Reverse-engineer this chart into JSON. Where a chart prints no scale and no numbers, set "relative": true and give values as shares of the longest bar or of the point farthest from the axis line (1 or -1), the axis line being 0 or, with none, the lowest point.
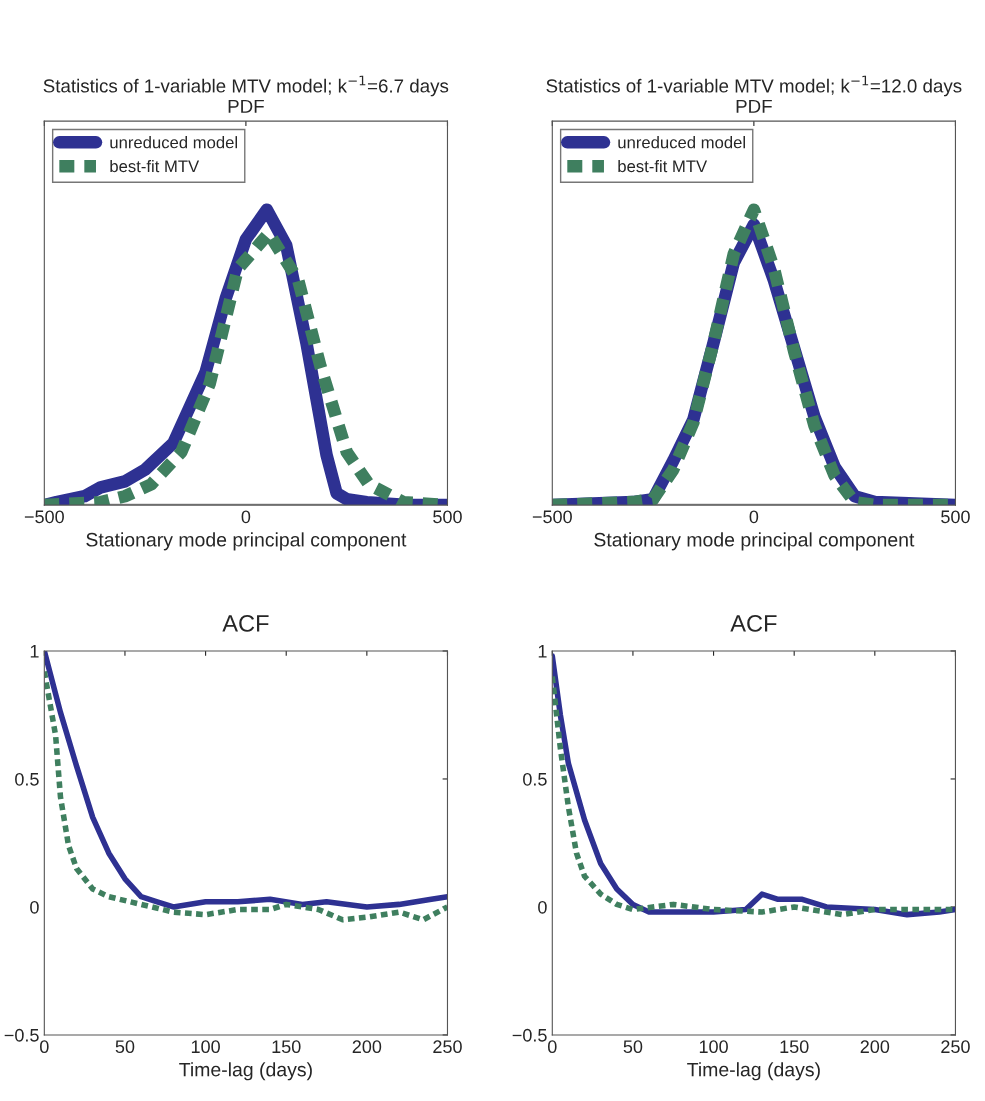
{
  "chart_data": [
    {
      "type": "line",
      "title": "Statistics of 1-variable MTV model; k$^{−1}$=6.7 days",
      "subtitle": "PDF",
      "xlabel": "Stationary mode principal component",
      "relative": true,
      "xlim": [
        -500,
        500
      ],
      "xticks": [
        {
          "value": -500,
          "label": "−500"
        },
        0,
        500
      ],
      "legend": "top left",
      "grid": false,
      "series": [
        {
          "name": "unreduced model",
          "color": "#2e3192",
          "line_style": "solid",
          "x": [
            -500,
            -470,
            -400,
            -360,
            -300,
            -250,
            -180,
            -100,
            -50,
            0,
            52,
            100,
            150,
            200,
            225,
            250,
            300,
            400,
            500
          ],
          "values": [
            0,
            0.01,
            0.03,
            0.06,
            0.08,
            0.12,
            0.21,
            0.45,
            0.7,
            0.9,
            1,
            0.88,
            0.55,
            0.17,
            0.04,
            0.02,
            0.01,
            0,
            0
          ]
        },
        {
          "name": "best-fit MTV",
          "color": "#3f7f5f",
          "line_style": "dashed",
          "x": [
            -500,
            -360,
            -300,
            -235,
            -160,
            -90,
            -20,
            57,
            130,
            185,
            250,
            305,
            390,
            500
          ],
          "values": [
            0,
            0.01,
            0.03,
            0.07,
            0.18,
            0.41,
            0.8,
            0.92,
            0.76,
            0.47,
            0.18,
            0.07,
            0.01,
            0
          ]
        }
      ]
    },
    {
      "type": "line",
      "title": "Statistics of 1-variable MTV model; k$^{−1}$=12.0 days",
      "subtitle": "PDF",
      "xlabel": "Stationary mode principal component",
      "relative": true,
      "xlim": [
        -500,
        500
      ],
      "xticks": [
        {
          "value": -500,
          "label": "−500"
        },
        0,
        500
      ],
      "legend": "top left",
      "grid": false,
      "series": [
        {
          "name": "unreduced model",
          "color": "#2e3192",
          "line_style": "solid",
          "x": [
            -500,
            -300,
            -250,
            -200,
            -150,
            -100,
            -50,
            0,
            50,
            100,
            150,
            200,
            250,
            300,
            500
          ],
          "values": [
            0,
            0.01,
            0.02,
            0.15,
            0.29,
            0.55,
            0.82,
            0.95,
            0.76,
            0.53,
            0.3,
            0.13,
            0.03,
            0.01,
            0
          ]
        },
        {
          "name": "best-fit MTV",
          "color": "#3f7f5f",
          "line_style": "dashed",
          "x": [
            -500,
            -300,
            -250,
            -200,
            -150,
            -100,
            -50,
            0,
            50,
            100,
            150,
            200,
            250,
            300,
            500
          ],
          "values": [
            0,
            0.01,
            0.02,
            0.12,
            0.28,
            0.55,
            0.85,
            1,
            0.8,
            0.52,
            0.27,
            0.1,
            0.01,
            0,
            0
          ]
        }
      ]
    },
    {
      "type": "line",
      "title": "ACF",
      "xlabel": "Time-lag (days)",
      "xlim": [
        0,
        250
      ],
      "xticks": [
        0,
        50,
        100,
        150,
        200,
        250
      ],
      "ylim": [
        -0.5,
        1
      ],
      "yticks": [
        {
          "value": -0.5,
          "label": "−0.5"
        },
        0,
        0.5,
        1
      ],
      "grid": false,
      "series": [
        {
          "color": "#2e3192",
          "line_style": "solid",
          "x": [
            0,
            10,
            20,
            30,
            40,
            50,
            60,
            70,
            80,
            100,
            120,
            140,
            160,
            175,
            200,
            220,
            240,
            250
          ],
          "values": [
            1,
            0.76,
            0.55,
            0.35,
            0.21,
            0.11,
            0.04,
            0.02,
            0,
            0.02,
            0.02,
            0.03,
            0.01,
            0.02,
            0,
            0.01,
            0.03,
            0.04
          ]
        },
        {
          "color": "#3f7f5f",
          "line_style": "dashed",
          "x": [
            0,
            7,
            10,
            15,
            20,
            30,
            40,
            60,
            80,
            100,
            120,
            140,
            150,
            170,
            185,
            200,
            220,
            235,
            250
          ],
          "values": [
            0.92,
            0.67,
            0.43,
            0.24,
            0.15,
            0.07,
            0.04,
            0.01,
            -0.02,
            -0.03,
            -0.01,
            -0.01,
            0.01,
            -0.01,
            -0.05,
            -0.04,
            -0.02,
            -0.05,
            0
          ]
        }
      ]
    },
    {
      "type": "line",
      "title": "ACF",
      "xlabel": "Time-lag (days)",
      "xlim": [
        0,
        250
      ],
      "xticks": [
        0,
        50,
        100,
        150,
        200,
        250
      ],
      "ylim": [
        -0.5,
        1
      ],
      "yticks": [
        {
          "value": -0.5,
          "label": "−0.5"
        },
        0,
        0.5,
        1
      ],
      "grid": false,
      "series": [
        {
          "color": "#2e3192",
          "line_style": "solid",
          "x": [
            0,
            5,
            10,
            20,
            30,
            40,
            50,
            60,
            80,
            100,
            120,
            130,
            140,
            155,
            170,
            200,
            220,
            240,
            250
          ],
          "values": [
            0.98,
            0.75,
            0.56,
            0.34,
            0.17,
            0.07,
            0.01,
            -0.02,
            -0.02,
            -0.02,
            -0.01,
            0.05,
            0.03,
            0.03,
            0,
            -0.01,
            -0.03,
            -0.02,
            -0.01
          ]
        },
        {
          "color": "#3f7f5f",
          "line_style": "dashed",
          "x": [
            0,
            5,
            10,
            15,
            20,
            30,
            40,
            50,
            75,
            100,
            130,
            150,
            180,
            200,
            230,
            250
          ],
          "values": [
            0.9,
            0.62,
            0.39,
            0.21,
            0.12,
            0.05,
            0.01,
            -0.01,
            0.01,
            -0.01,
            -0.02,
            0,
            -0.03,
            -0.01,
            -0.01,
            -0.01
          ]
        }
      ]
    }
  ]
}
